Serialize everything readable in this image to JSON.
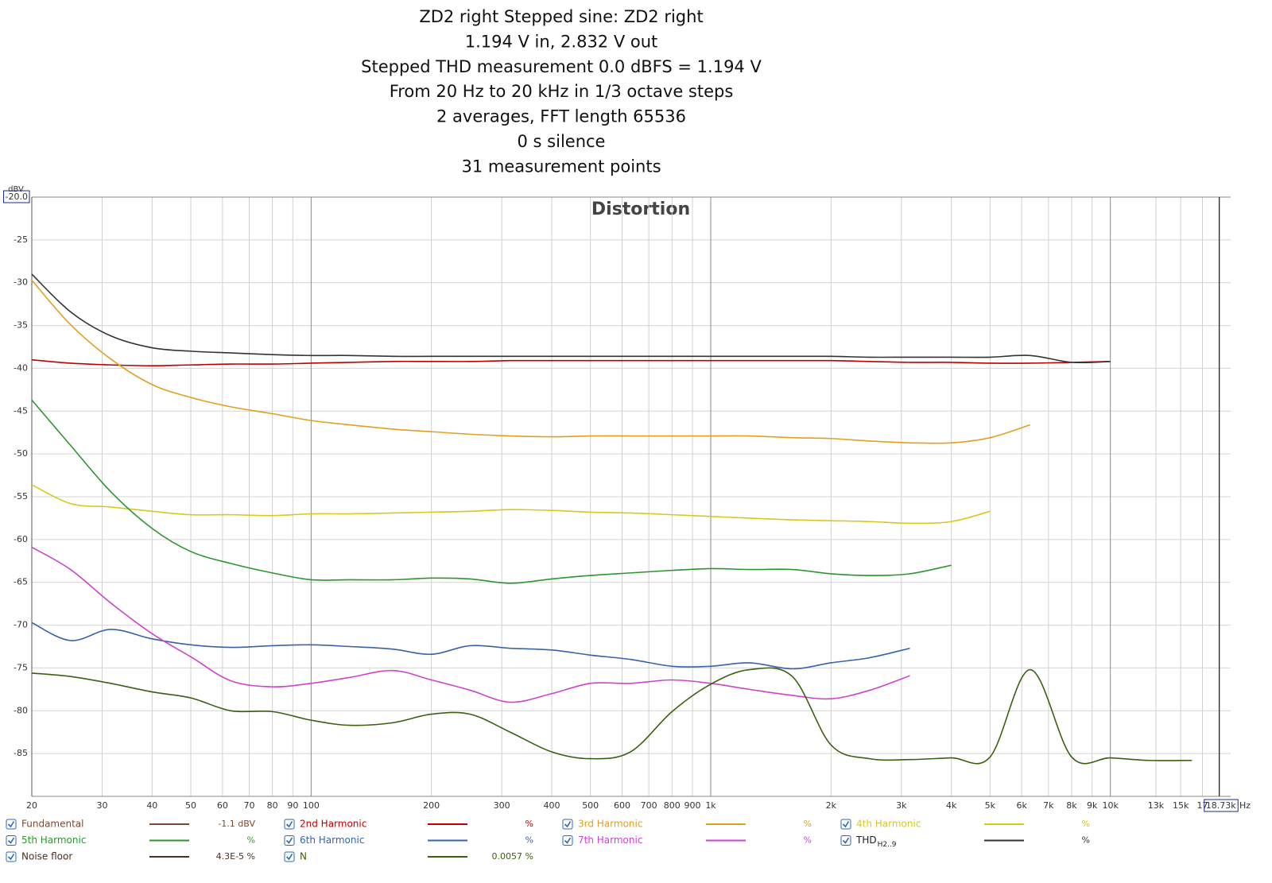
{
  "chart_data": {
    "type": "line",
    "title_lines": [
      "ZD2 right Stepped sine: ZD2 right",
      "1.194 V in, 2.832 V out",
      "Stepped THD measurement 0.0 dBFS = 1.194 V",
      "From 20 Hz to 20 kHz in 1/3 octave steps",
      "2 averages, FFT length 65536",
      "0 s silence",
      "31 measurement points"
    ],
    "subtitle": "Distortion",
    "y_label": "dBV",
    "x_label": "Hz",
    "log_x": true,
    "grid": true,
    "xlim": [
      20,
      20000
    ],
    "ylim": [
      -90,
      -20
    ],
    "yticks": [
      {
        "value": -20,
        "label": "-20.0"
      },
      -25,
      -30,
      -35,
      -40,
      -45,
      -50,
      -55,
      -60,
      -65,
      -70,
      -75,
      -80,
      -85
    ],
    "xticks": [
      20,
      30,
      40,
      50,
      60,
      70,
      80,
      90,
      100,
      200,
      300,
      400,
      500,
      600,
      700,
      800,
      900,
      {
        "value": 1000,
        "label": "1k"
      },
      {
        "value": 2000,
        "label": "2k"
      },
      {
        "value": 3000,
        "label": "3k"
      },
      {
        "value": 4000,
        "label": "4k"
      },
      {
        "value": 5000,
        "label": "5k"
      },
      {
        "value": 6000,
        "label": "6k"
      },
      {
        "value": 7000,
        "label": "7k"
      },
      {
        "value": 8000,
        "label": "8k"
      },
      {
        "value": 9000,
        "label": "9k"
      },
      {
        "value": 10000,
        "label": "10k"
      },
      {
        "value": 13000,
        "label": "13k"
      },
      {
        "value": 15000,
        "label": "15k"
      },
      {
        "value": 17000,
        "label": "17"
      }
    ],
    "cursor": {
      "value": 18730,
      "label": "18.73k"
    },
    "x": [
      20,
      25,
      31.5,
      40,
      50,
      63,
      80,
      100,
      125,
      160,
      200,
      250,
      315,
      400,
      500,
      630,
      800,
      1000,
      1250,
      1600,
      2000,
      2500,
      3150,
      4000,
      5000,
      6300,
      8000,
      10000,
      12500,
      16000,
      20000
    ],
    "series": [
      {
        "name": "Fundamental",
        "color": "#7a4a2a",
        "value_label": "-1.1 dBV"
      },
      {
        "name": "2nd Harmonic",
        "color": "#c00000",
        "value_label": "%",
        "values": [
          -39.0,
          -39.4,
          -39.6,
          -39.7,
          -39.6,
          -39.5,
          -39.5,
          -39.4,
          -39.3,
          -39.2,
          -39.2,
          -39.2,
          -39.1,
          -39.1,
          -39.1,
          -39.1,
          -39.1,
          -39.1,
          -39.1,
          -39.1,
          -39.1,
          -39.2,
          -39.3,
          -39.3,
          -39.4,
          -39.4,
          -39.3,
          -39.2,
          null,
          null,
          null
        ]
      },
      {
        "name": "3rd Harmonic",
        "color": "#e0a020",
        "value_label": "%",
        "values": [
          -29.7,
          -34.9,
          -38.9,
          -41.9,
          -43.4,
          -44.5,
          -45.3,
          -46.1,
          -46.6,
          -47.1,
          -47.4,
          -47.7,
          -47.9,
          -48.0,
          -47.9,
          -47.9,
          -47.9,
          -47.9,
          -47.9,
          -48.1,
          -48.2,
          -48.5,
          -48.7,
          -48.7,
          -48.1,
          -46.6,
          null,
          null,
          null,
          null,
          null
        ]
      },
      {
        "name": "4th Harmonic",
        "color": "#d8c820",
        "value_label": "%",
        "values": [
          -53.6,
          -55.8,
          -56.2,
          -56.7,
          -57.1,
          -57.1,
          -57.2,
          -57.0,
          -57.0,
          -56.9,
          -56.8,
          -56.7,
          -56.5,
          -56.6,
          -56.8,
          -56.9,
          -57.1,
          -57.3,
          -57.5,
          -57.7,
          -57.8,
          -57.9,
          -58.1,
          -57.9,
          -56.7,
          null,
          null,
          null,
          null,
          null,
          null
        ]
      },
      {
        "name": "5th Harmonic",
        "color": "#2e962e",
        "value_label": "%",
        "values": [
          -43.7,
          -49.0,
          -54.4,
          -58.7,
          -61.4,
          -62.8,
          -63.9,
          -64.7,
          -64.7,
          -64.7,
          -64.5,
          -64.6,
          -65.1,
          -64.6,
          -64.2,
          -63.9,
          -63.6,
          -63.4,
          -63.5,
          -63.5,
          -64.0,
          -64.2,
          -64.0,
          -63.0,
          null,
          null,
          null,
          null,
          null,
          null,
          null
        ]
      },
      {
        "name": "6th Harmonic",
        "color": "#3a62a8",
        "value_label": "%",
        "values": [
          -69.7,
          -71.8,
          -70.5,
          -71.6,
          -72.3,
          -72.6,
          -72.4,
          -72.3,
          -72.5,
          -72.8,
          -73.4,
          -72.4,
          -72.7,
          -72.9,
          -73.5,
          -74.0,
          -74.8,
          -74.8,
          -74.4,
          -75.1,
          -74.4,
          -73.8,
          -72.7,
          null,
          null,
          null,
          null,
          null,
          null,
          null,
          null
        ]
      },
      {
        "name": "7th Harmonic",
        "color": "#cc44cc",
        "value_label": "%",
        "values": [
          -60.9,
          -63.5,
          -67.4,
          -71.0,
          -73.7,
          -76.5,
          -77.2,
          -76.8,
          -76.1,
          -75.3,
          -76.4,
          -77.6,
          -79.0,
          -78.0,
          -76.8,
          -76.8,
          -76.4,
          -76.8,
          -77.5,
          -78.2,
          -78.6,
          -77.6,
          -75.9,
          null,
          null,
          null,
          null,
          null,
          null,
          null,
          null
        ]
      },
      {
        "name": "THD",
        "name_sub": "H2..9",
        "color": "#333333",
        "value_label": "%",
        "values": [
          -29.0,
          -33.4,
          -36.2,
          -37.6,
          -38.0,
          -38.2,
          -38.4,
          -38.5,
          -38.5,
          -38.6,
          -38.6,
          -38.6,
          -38.6,
          -38.6,
          -38.6,
          -38.6,
          -38.6,
          -38.6,
          -38.6,
          -38.6,
          -38.6,
          -38.7,
          -38.7,
          -38.7,
          -38.7,
          -38.5,
          -39.3,
          -39.2,
          null,
          null,
          null
        ]
      },
      {
        "name": "Noise floor",
        "color": "#4a3020",
        "value_label": "4.3E-5 %"
      },
      {
        "name": "N",
        "color": "#3a6010",
        "value_label": "0.0057 %",
        "values": [
          -75.6,
          -76.0,
          -76.8,
          -77.8,
          -78.5,
          -80.0,
          -80.1,
          -81.1,
          -81.7,
          -81.4,
          -80.4,
          -80.4,
          -82.5,
          -84.8,
          -85.6,
          -84.8,
          -80.1,
          -76.9,
          -75.2,
          -76.0,
          -84.0,
          -85.6,
          -85.7,
          -85.5,
          -85.4,
          -75.2,
          -85.4,
          -85.5,
          -85.8,
          -85.8,
          null
        ]
      }
    ]
  }
}
